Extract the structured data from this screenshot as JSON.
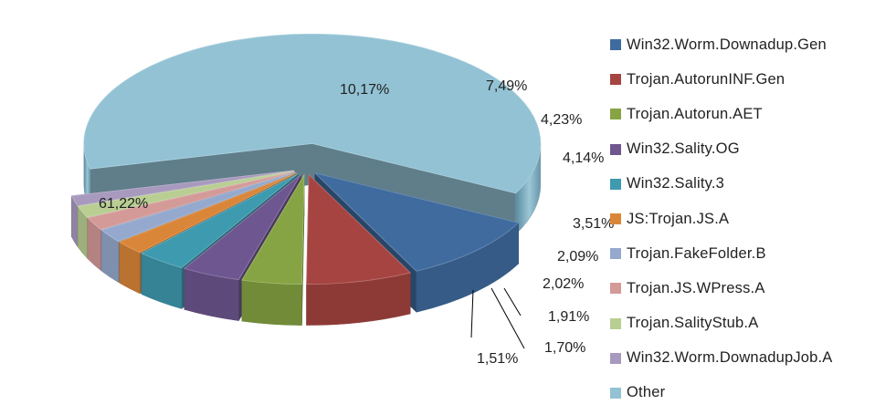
{
  "chart_data": {
    "type": "pie",
    "title": "",
    "style": "3d-exploded",
    "legend_position": "right",
    "slices": [
      {
        "name": "Win32.Worm.Downadup.Gen",
        "value": 10.17,
        "label": "10,17%",
        "color": "#3F6B9F"
      },
      {
        "name": "Trojan.AutorunINF.Gen",
        "value": 7.49,
        "label": "7,49%",
        "color": "#A64441"
      },
      {
        "name": "Trojan.Autorun.AET",
        "value": 4.23,
        "label": "4,23%",
        "color": "#86A443"
      },
      {
        "name": "Win32.Sality.OG",
        "value": 4.14,
        "label": "4,14%",
        "color": "#6E5790"
      },
      {
        "name": "Win32.Sality.3",
        "value": 3.51,
        "label": "3,51%",
        "color": "#3E9AAE"
      },
      {
        "name": "JS:Trojan.JS.A",
        "value": 2.09,
        "label": "2,09%",
        "color": "#DA8639"
      },
      {
        "name": "Trojan.FakeFolder.B",
        "value": 2.02,
        "label": "2,02%",
        "color": "#94A9CD"
      },
      {
        "name": "Trojan.JS.WPress.A",
        "value": 1.91,
        "label": "1,91%",
        "color": "#D49A98"
      },
      {
        "name": "Trojan.SalityStub.A",
        "value": 1.7,
        "label": "1,70%",
        "color": "#B9CE92"
      },
      {
        "name": "Win32.Worm.DownadupJob.A",
        "value": 1.51,
        "label": "1,51%",
        "color": "#A89ABE"
      },
      {
        "name": "Other",
        "value": 61.22,
        "label": "61,22%",
        "color": "#92C2D4"
      }
    ]
  }
}
